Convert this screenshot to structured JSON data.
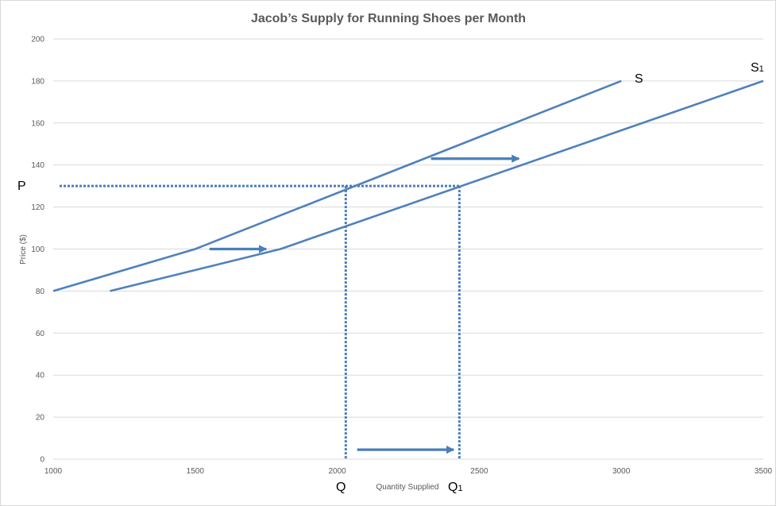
{
  "chart_data": {
    "type": "line",
    "title": "Jacob’s Supply for Running Shoes per Month",
    "xlabel": "Quantity Supplied",
    "ylabel": "Price ($)",
    "xlim": [
      1000,
      3500
    ],
    "ylim": [
      0,
      200
    ],
    "x_ticks": [
      1000,
      1500,
      2000,
      2500,
      3000,
      3500
    ],
    "y_ticks": [
      0,
      20,
      40,
      60,
      80,
      100,
      120,
      140,
      160,
      180,
      200
    ],
    "grid": true,
    "legend": "none",
    "series": [
      {
        "name": "S",
        "points": [
          [
            1000,
            80
          ],
          [
            1500,
            100
          ],
          [
            3000,
            180
          ]
        ]
      },
      {
        "name": "S1",
        "points": [
          [
            1200,
            80
          ],
          [
            1800,
            100
          ],
          [
            3500,
            180
          ]
        ]
      }
    ],
    "reference_lines": {
      "price": 130,
      "quantities": [
        2030,
        2430
      ]
    },
    "shift_arrows": [
      {
        "from": [
          1550,
          100
        ],
        "to": [
          1750,
          100
        ]
      },
      {
        "from": [
          2330,
          143
        ],
        "to": [
          2640,
          143
        ]
      },
      {
        "from": [
          2070,
          4.5
        ],
        "to": [
          2410,
          4.5
        ]
      }
    ],
    "annotations": {
      "s_label": "S",
      "s1_label": "S",
      "s1_sub": "1",
      "p_label": "P",
      "q_label": "Q",
      "q1_label": "Q",
      "q1_sub": "1"
    },
    "colors": {
      "line": "#4f81bd",
      "arrow": "#4a7ebb",
      "grid": "#d9d9d9",
      "text": "#595959"
    }
  }
}
